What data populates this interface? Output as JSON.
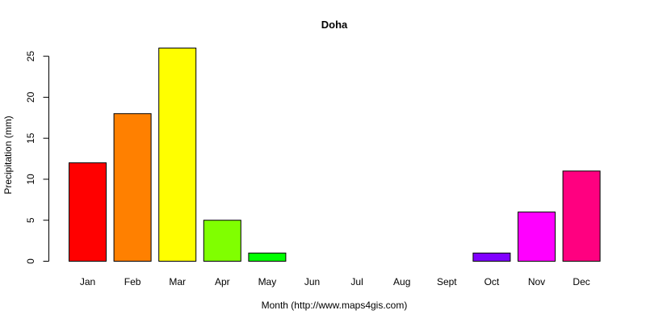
{
  "chart_data": {
    "type": "bar",
    "title": "Doha",
    "xlabel": "Month (http://www.maps4gis.com)",
    "ylabel": "Precipitation (mm)",
    "categories": [
      "Jan",
      "Feb",
      "Mar",
      "Apr",
      "May",
      "Jun",
      "Jul",
      "Aug",
      "Sept",
      "Oct",
      "Nov",
      "Dec"
    ],
    "values": [
      12,
      18,
      26,
      5,
      1,
      0,
      0,
      0,
      0,
      1,
      6,
      11
    ],
    "colors": [
      "#ff0000",
      "#ff8000",
      "#ffff00",
      "#80ff00",
      "#00ff00",
      "#00ff80",
      "#00ffff",
      "#0080ff",
      "#0000ff",
      "#8000ff",
      "#ff00ff",
      "#ff0080"
    ],
    "yticks": [
      0,
      5,
      10,
      15,
      20,
      25
    ],
    "ylim": [
      0,
      26
    ],
    "grid": false,
    "legend": "none"
  }
}
